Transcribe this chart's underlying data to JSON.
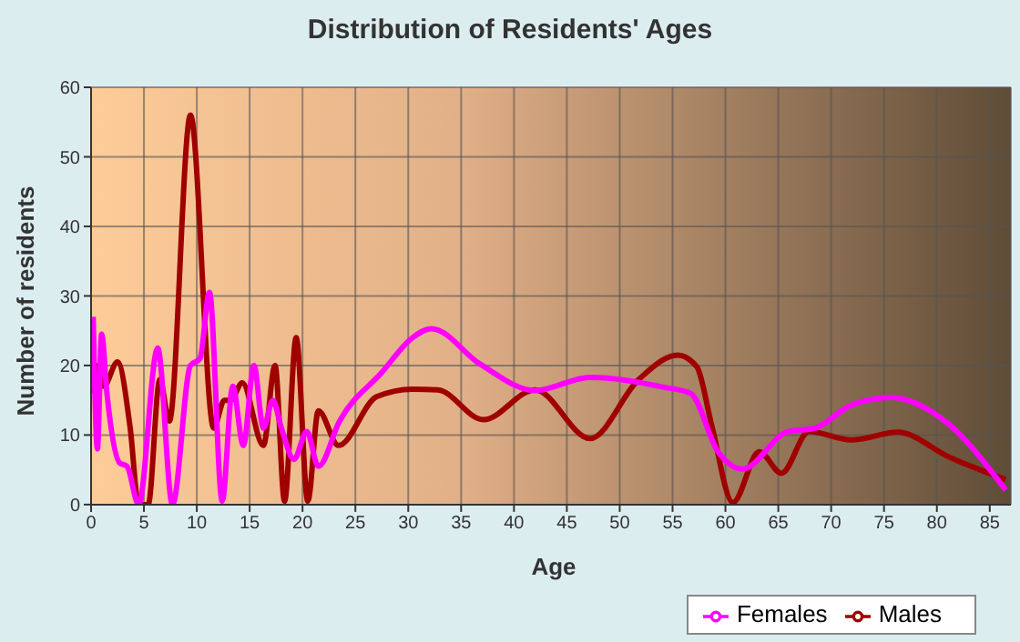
{
  "chart_data": {
    "type": "line",
    "title": "Distribution of Residents' Ages",
    "xlabel": "Age",
    "ylabel": "Number of residents",
    "xlim": [
      0,
      87
    ],
    "ylim": [
      0,
      60
    ],
    "xticks": [
      0,
      5,
      10,
      15,
      20,
      25,
      30,
      35,
      40,
      45,
      50,
      55,
      60,
      65,
      70,
      75,
      80,
      85
    ],
    "yticks": [
      0,
      10,
      20,
      30,
      40,
      50,
      60
    ],
    "grid": true,
    "legend": "bottom",
    "marker": "none",
    "line_style": "solid",
    "series": [
      {
        "name": "Males",
        "color": "#a00000",
        "x": [
          0.2,
          0.6,
          1.2,
          2.5,
          3.7,
          4.5,
          5.4,
          6.5,
          7.4,
          9.4,
          11.6,
          12.6,
          13.2,
          14.3,
          16.3,
          17.4,
          18.3,
          19.4,
          20.5,
          21.5,
          23.4,
          27,
          30.4,
          32.8,
          37.1,
          42,
          47.2,
          51.8,
          55.5,
          57.3,
          58.7,
          60.7,
          63.2,
          65.3,
          67.9,
          71.9,
          76.3,
          81.2,
          86.5
        ],
        "values": [
          16,
          20,
          17,
          20.5,
          11,
          0,
          0,
          18,
          12,
          56,
          11,
          15,
          15,
          17.5,
          8.5,
          20,
          0.5,
          24,
          0.5,
          13.5,
          8.5,
          15.5,
          16.6,
          16.5,
          12.2,
          16.5,
          9.5,
          18,
          21.5,
          19.8,
          11.4,
          0.3,
          7.6,
          4.5,
          10.5,
          9.3,
          10.4,
          6.8,
          3.6
        ]
      },
      {
        "name": "Females",
        "color": "#ff00ff",
        "x": [
          0.2,
          0.6,
          1,
          1.5,
          2.7,
          3.4,
          4.5,
          6.3,
          7.7,
          9.4,
          10.3,
          11.2,
          12.4,
          13.4,
          14.4,
          15.4,
          16.3,
          17.2,
          18,
          19.2,
          20.4,
          21.5,
          23.5,
          27.5,
          30.4,
          32.2,
          36.8,
          42,
          47.2,
          54.1,
          56.7,
          59.3,
          61.6,
          65.9,
          68.5,
          71.9,
          75.7,
          80.6,
          86.5
        ],
        "values": [
          27,
          8,
          24.5,
          16,
          6,
          5.5,
          0,
          22.5,
          0,
          20,
          21,
          30.5,
          0.5,
          17,
          8.5,
          20,
          11,
          15,
          11,
          6.5,
          10.5,
          5.5,
          12,
          19,
          24,
          25.3,
          20.2,
          16.4,
          18.3,
          16.9,
          16,
          7.6,
          5.1,
          10.5,
          11,
          14.3,
          15.4,
          12.2,
          2.1
        ]
      }
    ]
  }
}
